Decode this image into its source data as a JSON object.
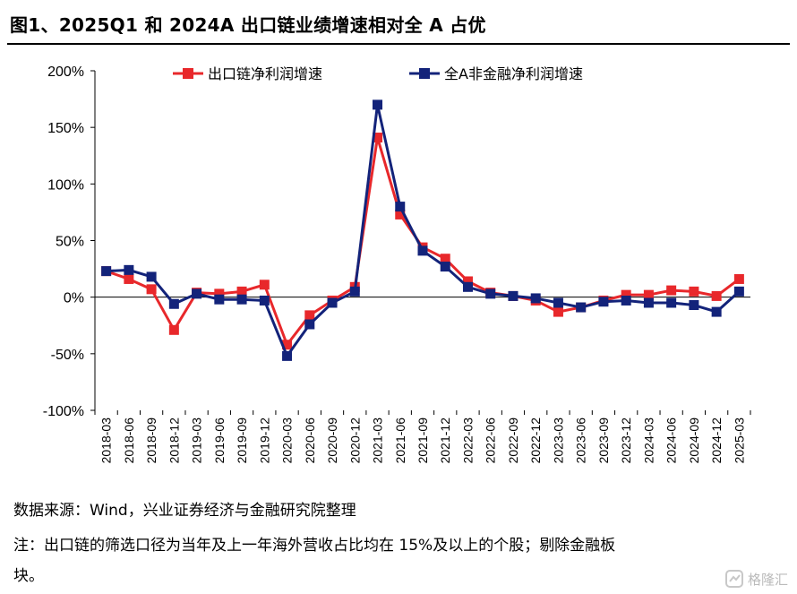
{
  "header": {
    "title": "图1、2025Q1 和 2024A 出口链业绩增速相对全 A 占优"
  },
  "chart_data": {
    "type": "line",
    "title": "图1、2025Q1 和 2024A 出口链业绩增速相对全 A 占优",
    "xlabel": "",
    "ylabel": "",
    "ylim": [
      -100,
      200
    ],
    "yticks": [
      "200%",
      "150%",
      "100%",
      "50%",
      "0%",
      "-50%",
      "-100%"
    ],
    "ytick_values": [
      200,
      150,
      100,
      50,
      0,
      -50,
      -100
    ],
    "grid": false,
    "legend_position": "top",
    "categories": [
      "2018-03",
      "2018-06",
      "2018-09",
      "2018-12",
      "2019-03",
      "2019-06",
      "2019-09",
      "2019-12",
      "2020-03",
      "2020-06",
      "2020-09",
      "2020-12",
      "2021-03",
      "2021-06",
      "2021-09",
      "2021-12",
      "2022-03",
      "2022-06",
      "2022-09",
      "2022-12",
      "2023-03",
      "2023-06",
      "2023-09",
      "2023-12",
      "2024-03",
      "2024-06",
      "2024-09",
      "2024-12",
      "2025-03"
    ],
    "series": [
      {
        "name": "出口链净利润增速",
        "color": "#e8282b",
        "marker": "square",
        "values": [
          23,
          16,
          7,
          -29,
          4,
          3,
          5,
          11,
          -42,
          -16,
          -3,
          9,
          141,
          73,
          44,
          34,
          14,
          4,
          1,
          -3,
          -13,
          -9,
          -3,
          2,
          2,
          6,
          5,
          1,
          16
        ]
      },
      {
        "name": "全A非金融净利润增速",
        "color": "#13237a",
        "marker": "square",
        "values": [
          23,
          24,
          18,
          -6,
          3,
          -2,
          -2,
          -3,
          -52,
          -24,
          -5,
          5,
          170,
          80,
          41,
          27,
          9,
          3,
          1,
          -1,
          -5,
          -9,
          -4,
          -3,
          -5,
          -5,
          -7,
          -13,
          5
        ]
      }
    ]
  },
  "footer": {
    "source": "数据来源：Wind，兴业证券经济与金融研究院整理",
    "note_line1": "注：出口链的筛选口径为当年及上一年海外营收占比均在  15%及以上的个股；剔除金融板",
    "note_line2": "块。",
    "watermark": "格隆汇"
  }
}
